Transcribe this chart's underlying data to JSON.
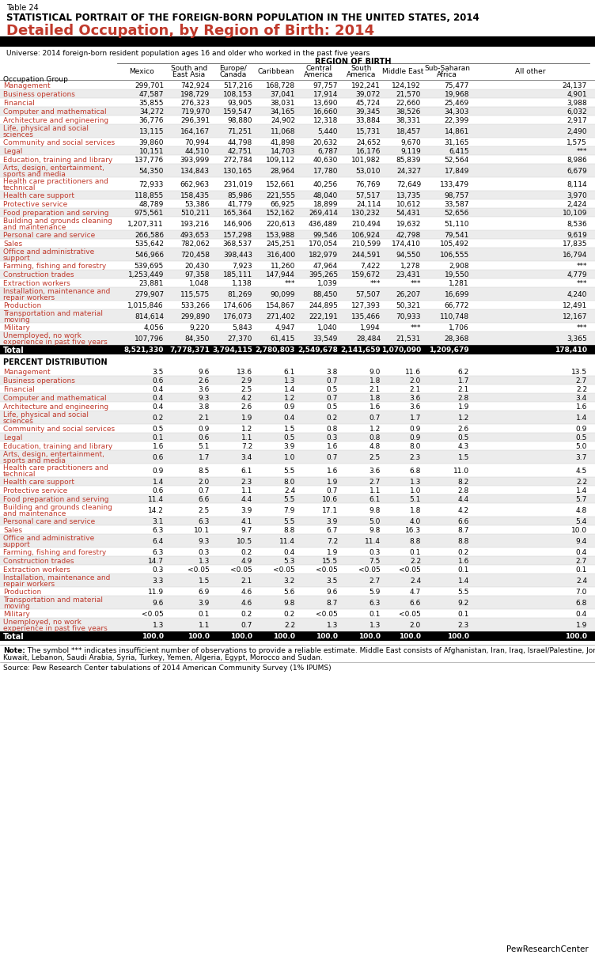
{
  "table_num": "Table 24",
  "title1": "STATISTICAL PORTRAIT OF THE FOREIGN-BORN POPULATION IN THE UNITED STATES, 2014",
  "title2": "Detailed Occupation, by Region of Birth: 2014",
  "universe": "Universe: 2014 foreign-born resident population ages 16 and older who worked in the past five years",
  "region_header": "REGION OF BIRTH",
  "col_headers": [
    "Mexico",
    "South and\nEast Asia",
    "Europe/\nCanada",
    "Caribbean",
    "Central\nAmerica",
    "South\nAmerica",
    "Middle East",
    "Sub-Saharan\nAfrica",
    "All other"
  ],
  "row_label_header": "Occupation Group",
  "count_rows": [
    [
      "Management",
      "299,701",
      "742,924",
      "517,216",
      "168,728",
      "97,757",
      "192,241",
      "124,192",
      "75,477",
      "24,137"
    ],
    [
      "Business operations",
      "47,587",
      "198,729",
      "108,153",
      "37,041",
      "17,914",
      "39,072",
      "21,570",
      "19,968",
      "4,901"
    ],
    [
      "Financial",
      "35,855",
      "276,323",
      "93,905",
      "38,031",
      "13,690",
      "45,724",
      "22,660",
      "25,469",
      "3,988"
    ],
    [
      "Computer and mathematical",
      "34,272",
      "719,970",
      "159,547",
      "34,165",
      "16,660",
      "39,345",
      "38,526",
      "34,303",
      "6,032"
    ],
    [
      "Architecture and engineering",
      "36,776",
      "296,391",
      "98,880",
      "24,902",
      "12,318",
      "33,884",
      "38,331",
      "22,399",
      "2,917"
    ],
    [
      "Life, physical and social\nsciences",
      "13,115",
      "164,167",
      "71,251",
      "11,068",
      "5,440",
      "15,731",
      "18,457",
      "14,861",
      "2,490"
    ],
    [
      "Community and social services",
      "39,860",
      "70,994",
      "44,798",
      "41,898",
      "20,632",
      "24,652",
      "9,670",
      "31,165",
      "1,575"
    ],
    [
      "Legal",
      "10,151",
      "44,510",
      "42,751",
      "14,703",
      "6,787",
      "16,176",
      "9,119",
      "6,415",
      "***"
    ],
    [
      "Education, training and library",
      "137,776",
      "393,999",
      "272,784",
      "109,112",
      "40,630",
      "101,982",
      "85,839",
      "52,564",
      "8,986"
    ],
    [
      "Arts, design, entertainment,\nsports and media",
      "54,350",
      "134,843",
      "130,165",
      "28,964",
      "17,780",
      "53,010",
      "24,327",
      "17,849",
      "6,679"
    ],
    [
      "Health care practitioners and\ntechnical",
      "72,933",
      "662,963",
      "231,019",
      "152,661",
      "40,256",
      "76,769",
      "72,649",
      "133,479",
      "8,114"
    ],
    [
      "Health care support",
      "118,855",
      "158,435",
      "85,986",
      "221,555",
      "48,040",
      "57,517",
      "13,735",
      "98,757",
      "3,970"
    ],
    [
      "Protective service",
      "48,789",
      "53,386",
      "41,779",
      "66,925",
      "18,899",
      "24,114",
      "10,612",
      "33,587",
      "2,424"
    ],
    [
      "Food preparation and serving",
      "975,561",
      "510,211",
      "165,364",
      "152,162",
      "269,414",
      "130,232",
      "54,431",
      "52,656",
      "10,109"
    ],
    [
      "Building and grounds cleaning\nand maintenance",
      "1,207,311",
      "193,216",
      "146,906",
      "220,613",
      "436,489",
      "210,494",
      "19,632",
      "51,110",
      "8,536"
    ],
    [
      "Personal care and service",
      "266,586",
      "493,653",
      "157,298",
      "153,988",
      "99,546",
      "106,924",
      "42,798",
      "79,541",
      "9,619"
    ],
    [
      "Sales",
      "535,642",
      "782,062",
      "368,537",
      "245,251",
      "170,054",
      "210,599",
      "174,410",
      "105,492",
      "17,835"
    ],
    [
      "Office and administrative\nsupport",
      "546,966",
      "720,458",
      "398,443",
      "316,400",
      "182,979",
      "244,591",
      "94,550",
      "106,555",
      "16,794"
    ],
    [
      "Farming, fishing and forestry",
      "539,695",
      "20,430",
      "7,923",
      "11,260",
      "47,964",
      "7,422",
      "1,278",
      "2,908",
      "***"
    ],
    [
      "Construction trades",
      "1,253,449",
      "97,358",
      "185,111",
      "147,944",
      "395,265",
      "159,672",
      "23,431",
      "19,550",
      "4,779"
    ],
    [
      "Extraction workers",
      "23,881",
      "1,048",
      "1,138",
      "***",
      "1,039",
      "***",
      "***",
      "1,281",
      "***"
    ],
    [
      "Installation, maintenance and\nrepair workers",
      "279,907",
      "115,575",
      "81,269",
      "90,099",
      "88,450",
      "57,507",
      "26,207",
      "16,699",
      "4,240"
    ],
    [
      "Production",
      "1,015,846",
      "533,266",
      "174,606",
      "154,867",
      "244,895",
      "127,393",
      "50,321",
      "66,772",
      "12,491"
    ],
    [
      "Transportation and material\nmoving",
      "814,614",
      "299,890",
      "176,073",
      "271,402",
      "222,191",
      "135,466",
      "70,933",
      "110,748",
      "12,167"
    ],
    [
      "Military",
      "4,056",
      "9,220",
      "5,843",
      "4,947",
      "1,040",
      "1,994",
      "***",
      "1,706",
      "***"
    ],
    [
      "Unemployed, no work\nexperience in past five years",
      "107,796",
      "84,350",
      "27,370",
      "61,415",
      "33,549",
      "28,484",
      "21,531",
      "28,368",
      "3,365"
    ]
  ],
  "total_row": [
    "Total",
    "8,521,330",
    "7,778,371",
    "3,794,115",
    "2,780,803",
    "2,549,678",
    "2,141,659",
    "1,070,090",
    "1,209,679",
    "178,410"
  ],
  "pct_section_header": "PERCENT DISTRIBUTION",
  "pct_rows": [
    [
      "Management",
      "3.5",
      "9.6",
      "13.6",
      "6.1",
      "3.8",
      "9.0",
      "11.6",
      "6.2",
      "13.5"
    ],
    [
      "Business operations",
      "0.6",
      "2.6",
      "2.9",
      "1.3",
      "0.7",
      "1.8",
      "2.0",
      "1.7",
      "2.7"
    ],
    [
      "Financial",
      "0.4",
      "3.6",
      "2.5",
      "1.4",
      "0.5",
      "2.1",
      "2.1",
      "2.1",
      "2.2"
    ],
    [
      "Computer and mathematical",
      "0.4",
      "9.3",
      "4.2",
      "1.2",
      "0.7",
      "1.8",
      "3.6",
      "2.8",
      "3.4"
    ],
    [
      "Architecture and engineering",
      "0.4",
      "3.8",
      "2.6",
      "0.9",
      "0.5",
      "1.6",
      "3.6",
      "1.9",
      "1.6"
    ],
    [
      "Life, physical and social\nsciences",
      "0.2",
      "2.1",
      "1.9",
      "0.4",
      "0.2",
      "0.7",
      "1.7",
      "1.2",
      "1.4"
    ],
    [
      "Community and social services",
      "0.5",
      "0.9",
      "1.2",
      "1.5",
      "0.8",
      "1.2",
      "0.9",
      "2.6",
      "0.9"
    ],
    [
      "Legal",
      "0.1",
      "0.6",
      "1.1",
      "0.5",
      "0.3",
      "0.8",
      "0.9",
      "0.5",
      "0.5"
    ],
    [
      "Education, training and library",
      "1.6",
      "5.1",
      "7.2",
      "3.9",
      "1.6",
      "4.8",
      "8.0",
      "4.3",
      "5.0"
    ],
    [
      "Arts, design, entertainment,\nsports and media",
      "0.6",
      "1.7",
      "3.4",
      "1.0",
      "0.7",
      "2.5",
      "2.3",
      "1.5",
      "3.7"
    ],
    [
      "Health care practitioners and\ntechnical",
      "0.9",
      "8.5",
      "6.1",
      "5.5",
      "1.6",
      "3.6",
      "6.8",
      "11.0",
      "4.5"
    ],
    [
      "Health care support",
      "1.4",
      "2.0",
      "2.3",
      "8.0",
      "1.9",
      "2.7",
      "1.3",
      "8.2",
      "2.2"
    ],
    [
      "Protective service",
      "0.6",
      "0.7",
      "1.1",
      "2.4",
      "0.7",
      "1.1",
      "1.0",
      "2.8",
      "1.4"
    ],
    [
      "Food preparation and serving",
      "11.4",
      "6.6",
      "4.4",
      "5.5",
      "10.6",
      "6.1",
      "5.1",
      "4.4",
      "5.7"
    ],
    [
      "Building and grounds cleaning\nand maintenance",
      "14.2",
      "2.5",
      "3.9",
      "7.9",
      "17.1",
      "9.8",
      "1.8",
      "4.2",
      "4.8"
    ],
    [
      "Personal care and service",
      "3.1",
      "6.3",
      "4.1",
      "5.5",
      "3.9",
      "5.0",
      "4.0",
      "6.6",
      "5.4"
    ],
    [
      "Sales",
      "6.3",
      "10.1",
      "9.7",
      "8.8",
      "6.7",
      "9.8",
      "16.3",
      "8.7",
      "10.0"
    ],
    [
      "Office and administrative\nsupport",
      "6.4",
      "9.3",
      "10.5",
      "11.4",
      "7.2",
      "11.4",
      "8.8",
      "8.8",
      "9.4"
    ],
    [
      "Farming, fishing and forestry",
      "6.3",
      "0.3",
      "0.2",
      "0.4",
      "1.9",
      "0.3",
      "0.1",
      "0.2",
      "0.4"
    ],
    [
      "Construction trades",
      "14.7",
      "1.3",
      "4.9",
      "5.3",
      "15.5",
      "7.5",
      "2.2",
      "1.6",
      "2.7"
    ],
    [
      "Extraction workers",
      "0.3",
      "<0.05",
      "<0.05",
      "<0.05",
      "<0.05",
      "<0.05",
      "<0.05",
      "0.1",
      "0.1"
    ],
    [
      "Installation, maintenance and\nrepair workers",
      "3.3",
      "1.5",
      "2.1",
      "3.2",
      "3.5",
      "2.7",
      "2.4",
      "1.4",
      "2.4"
    ],
    [
      "Production",
      "11.9",
      "6.9",
      "4.6",
      "5.6",
      "9.6",
      "5.9",
      "4.7",
      "5.5",
      "7.0"
    ],
    [
      "Transportation and material\nmoving",
      "9.6",
      "3.9",
      "4.6",
      "9.8",
      "8.7",
      "6.3",
      "6.6",
      "9.2",
      "6.8"
    ],
    [
      "Military",
      "<0.05",
      "0.1",
      "0.2",
      "0.2",
      "<0.05",
      "0.1",
      "<0.05",
      "0.1",
      "0.4"
    ],
    [
      "Unemployed, no work\nexperience in past five years",
      "1.3",
      "1.1",
      "0.7",
      "2.2",
      "1.3",
      "1.3",
      "2.0",
      "2.3",
      "1.9"
    ]
  ],
  "pct_total_row": [
    "Total",
    "100.0",
    "100.0",
    "100.0",
    "100.0",
    "100.0",
    "100.0",
    "100.0",
    "100.0",
    "100.0"
  ],
  "note_bold": "Note:",
  "note_rest": " The symbol *** indicates insufficient number of observations to provide a reliable estimate. Middle East consists of Afghanistan, Iran, Iraq, Israel/Palestine, Jordan,\nKuwait, Lebanon, Saudi Arabia, Syria, Turkey, Yemen, Algeria, Egypt, Morocco and Sudan.",
  "source": "Source: Pew Research Center tabulations of 2014 American Community Survey (1% IPUMS)",
  "bg_color": "#ffffff",
  "title_color": "#c0392b",
  "label_color": "#c0392b",
  "alt_row_color": "#ececec"
}
